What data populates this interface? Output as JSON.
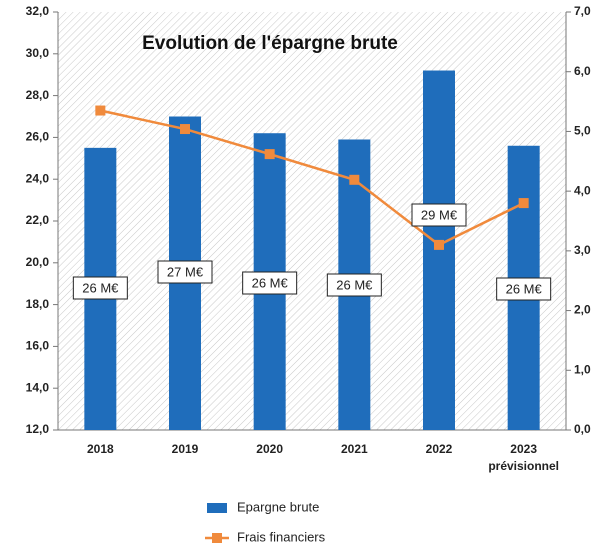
{
  "chart_data": {
    "type": "bar",
    "title": "Evolution de l'épargne brute",
    "categories": [
      "2018",
      "2019",
      "2020",
      "2021",
      "2022",
      "2023\nprévisionnel"
    ],
    "series": [
      {
        "name": "Epargne brute",
        "type": "bar",
        "color": "#1f6dbb",
        "values": [
          25.5,
          27.0,
          26.2,
          25.9,
          29.2,
          25.6
        ],
        "value_labels": [
          "26 M€",
          "27 M€",
          "26 M€",
          "26 M€",
          "29 M€",
          "26 M€"
        ]
      },
      {
        "name": "Frais financiers",
        "type": "line",
        "axis": "y2",
        "color": "#f08a3c",
        "values": [
          5.35,
          5.04,
          4.62,
          4.19,
          3.1,
          3.8
        ]
      }
    ],
    "ylim": [
      12,
      32
    ],
    "yticks": [
      {
        "value": 12,
        "label": "12,0"
      },
      {
        "value": 14,
        "label": "14,0"
      },
      {
        "value": 16,
        "label": "16,0"
      },
      {
        "value": 18,
        "label": "18,0"
      },
      {
        "value": 20,
        "label": "20,0"
      },
      {
        "value": 22,
        "label": "22,0"
      },
      {
        "value": 24,
        "label": "24,0"
      },
      {
        "value": 26,
        "label": "26,0"
      },
      {
        "value": 28,
        "label": "28,0"
      },
      {
        "value": 30,
        "label": "30,0"
      },
      {
        "value": 32,
        "label": "32,0"
      }
    ],
    "y2lim": [
      0,
      7
    ],
    "y2ticks": [
      {
        "value": 0,
        "label": "0,0"
      },
      {
        "value": 1,
        "label": "1,0"
      },
      {
        "value": 2,
        "label": "2,0"
      },
      {
        "value": 3,
        "label": "3,0"
      },
      {
        "value": 4,
        "label": "4,0"
      },
      {
        "value": 5,
        "label": "5,0"
      },
      {
        "value": 6,
        "label": "6,0"
      },
      {
        "value": 7,
        "label": "7,0"
      }
    ],
    "legend": "bottom"
  }
}
